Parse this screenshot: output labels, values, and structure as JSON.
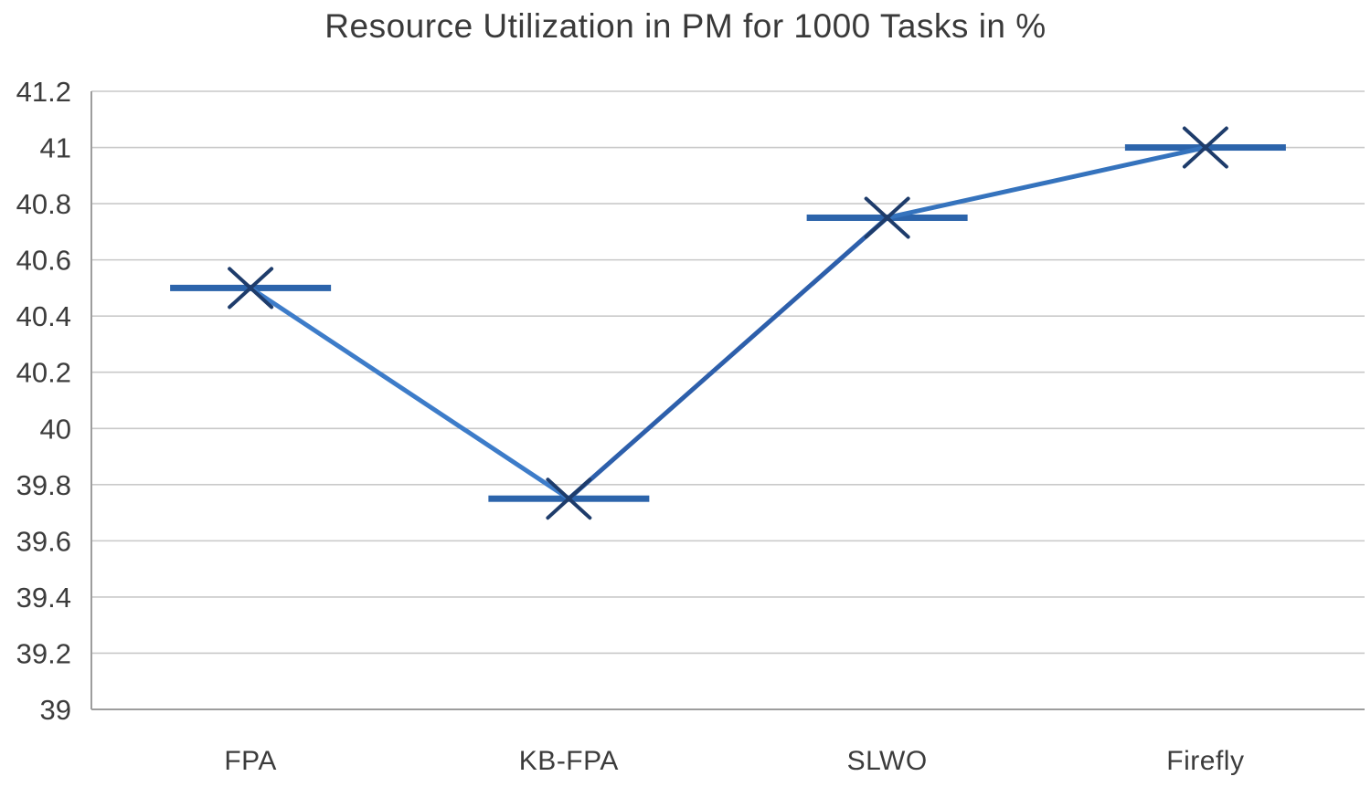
{
  "chart_data": {
    "type": "line",
    "title": "Resource Utilization in PM for 1000 Tasks in %",
    "categories": [
      "FPA",
      "KB-FPA",
      "SLWO",
      "Firefly"
    ],
    "series": [
      {
        "name": "Resource Utilization in PM",
        "values": [
          40.5,
          39.75,
          40.75,
          41
        ]
      }
    ],
    "ylim": [
      39,
      41.2
    ],
    "ytick_step": 0.2,
    "ytick_labels": [
      "41.2",
      "41",
      "40.8",
      "40.6",
      "40.4",
      "40.2",
      "40",
      "39.8",
      "39.6",
      "39.4",
      "39.2",
      "39"
    ],
    "grid": true,
    "legend": "none",
    "marker": "x-with-horizontal-dash",
    "colors": {
      "line_segments": [
        "#3d7cc9",
        "#2d5fab",
        "#3573bd"
      ],
      "dash_marker": "#2c64ab",
      "x_marker": "#1e3c6b",
      "gridline": "#c9c9c9",
      "axis": "#9d9d9d",
      "text": "#3c3c3c"
    }
  }
}
